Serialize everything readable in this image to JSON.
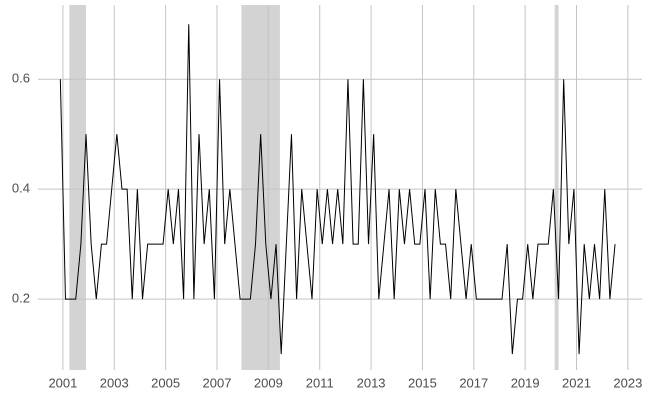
{
  "chart_data": {
    "type": "line",
    "x": [
      2000.9,
      2001.1,
      2001.3,
      2001.5,
      2001.7,
      2001.9,
      2002.1,
      2002.3,
      2002.5,
      2002.7,
      2002.9,
      2003.1,
      2003.3,
      2003.5,
      2003.7,
      2003.9,
      2004.1,
      2004.3,
      2004.5,
      2004.7,
      2004.9,
      2005.1,
      2005.3,
      2005.5,
      2005.7,
      2005.9,
      2006.1,
      2006.3,
      2006.5,
      2006.7,
      2006.9,
      2007.1,
      2007.3,
      2007.5,
      2007.7,
      2007.9,
      2008.1,
      2008.3,
      2008.5,
      2008.7,
      2008.9,
      2009.1,
      2009.3,
      2009.5,
      2009.7,
      2009.9,
      2010.1,
      2010.3,
      2010.5,
      2010.7,
      2010.9,
      2011.1,
      2011.3,
      2011.5,
      2011.7,
      2011.9,
      2012.1,
      2012.3,
      2012.5,
      2012.7,
      2012.9,
      2013.1,
      2013.3,
      2013.5,
      2013.7,
      2013.9,
      2014.1,
      2014.3,
      2014.5,
      2014.7,
      2014.9,
      2015.1,
      2015.3,
      2015.5,
      2015.7,
      2015.9,
      2016.1,
      2016.3,
      2016.5,
      2016.7,
      2016.9,
      2017.1,
      2017.3,
      2017.5,
      2017.7,
      2017.9,
      2018.1,
      2018.3,
      2018.5,
      2018.7,
      2018.9,
      2019.1,
      2019.3,
      2019.5,
      2019.7,
      2019.9,
      2020.1,
      2020.3,
      2020.5,
      2020.7,
      2020.9,
      2021.1,
      2021.3,
      2021.5,
      2021.7,
      2021.9,
      2022.1,
      2022.3,
      2022.5
    ],
    "series": [
      {
        "color": "#000000",
        "values": [
          0.6,
          0.2,
          0.2,
          0.2,
          0.3,
          0.5,
          0.3,
          0.2,
          0.3,
          0.3,
          0.4,
          0.5,
          0.4,
          0.4,
          0.2,
          0.4,
          0.2,
          0.3,
          0.3,
          0.3,
          0.3,
          0.4,
          0.3,
          0.4,
          0.2,
          0.7,
          0.2,
          0.5,
          0.3,
          0.4,
          0.2,
          0.6,
          0.3,
          0.4,
          0.3,
          0.2,
          0.2,
          0.2,
          0.3,
          0.5,
          0.3,
          0.2,
          0.3,
          0.1,
          0.3,
          0.5,
          0.2,
          0.4,
          0.3,
          0.2,
          0.4,
          0.3,
          0.4,
          0.3,
          0.4,
          0.3,
          0.6,
          0.3,
          0.3,
          0.6,
          0.3,
          0.5,
          0.2,
          0.3,
          0.4,
          0.2,
          0.4,
          0.3,
          0.4,
          0.3,
          0.3,
          0.4,
          0.2,
          0.4,
          0.3,
          0.3,
          0.2,
          0.4,
          0.3,
          0.2,
          0.3,
          0.2,
          0.2,
          0.2,
          0.2,
          0.2,
          0.2,
          0.3,
          0.1,
          0.2,
          0.2,
          0.3,
          0.2,
          0.3,
          0.3,
          0.3,
          0.4,
          0.2,
          0.6,
          0.3,
          0.4,
          0.1,
          0.3,
          0.2,
          0.3,
          0.2,
          0.4,
          0.2,
          0.3
        ]
      }
    ],
    "shaded_ranges": [
      [
        2001.25,
        2001.9
      ],
      [
        2007.95,
        2009.45
      ],
      [
        2020.15,
        2020.3
      ]
    ],
    "shade_color": "#d3d3d3",
    "xlim": [
      2000.03,
      2023.55
    ],
    "xticks": [
      2001,
      2003,
      2005,
      2007,
      2009,
      2011,
      2013,
      2015,
      2017,
      2019,
      2021,
      2023
    ],
    "ylim": [
      0.071,
      0.735
    ],
    "yticks": [
      0.2,
      0.4,
      0.6
    ],
    "grid": true
  }
}
